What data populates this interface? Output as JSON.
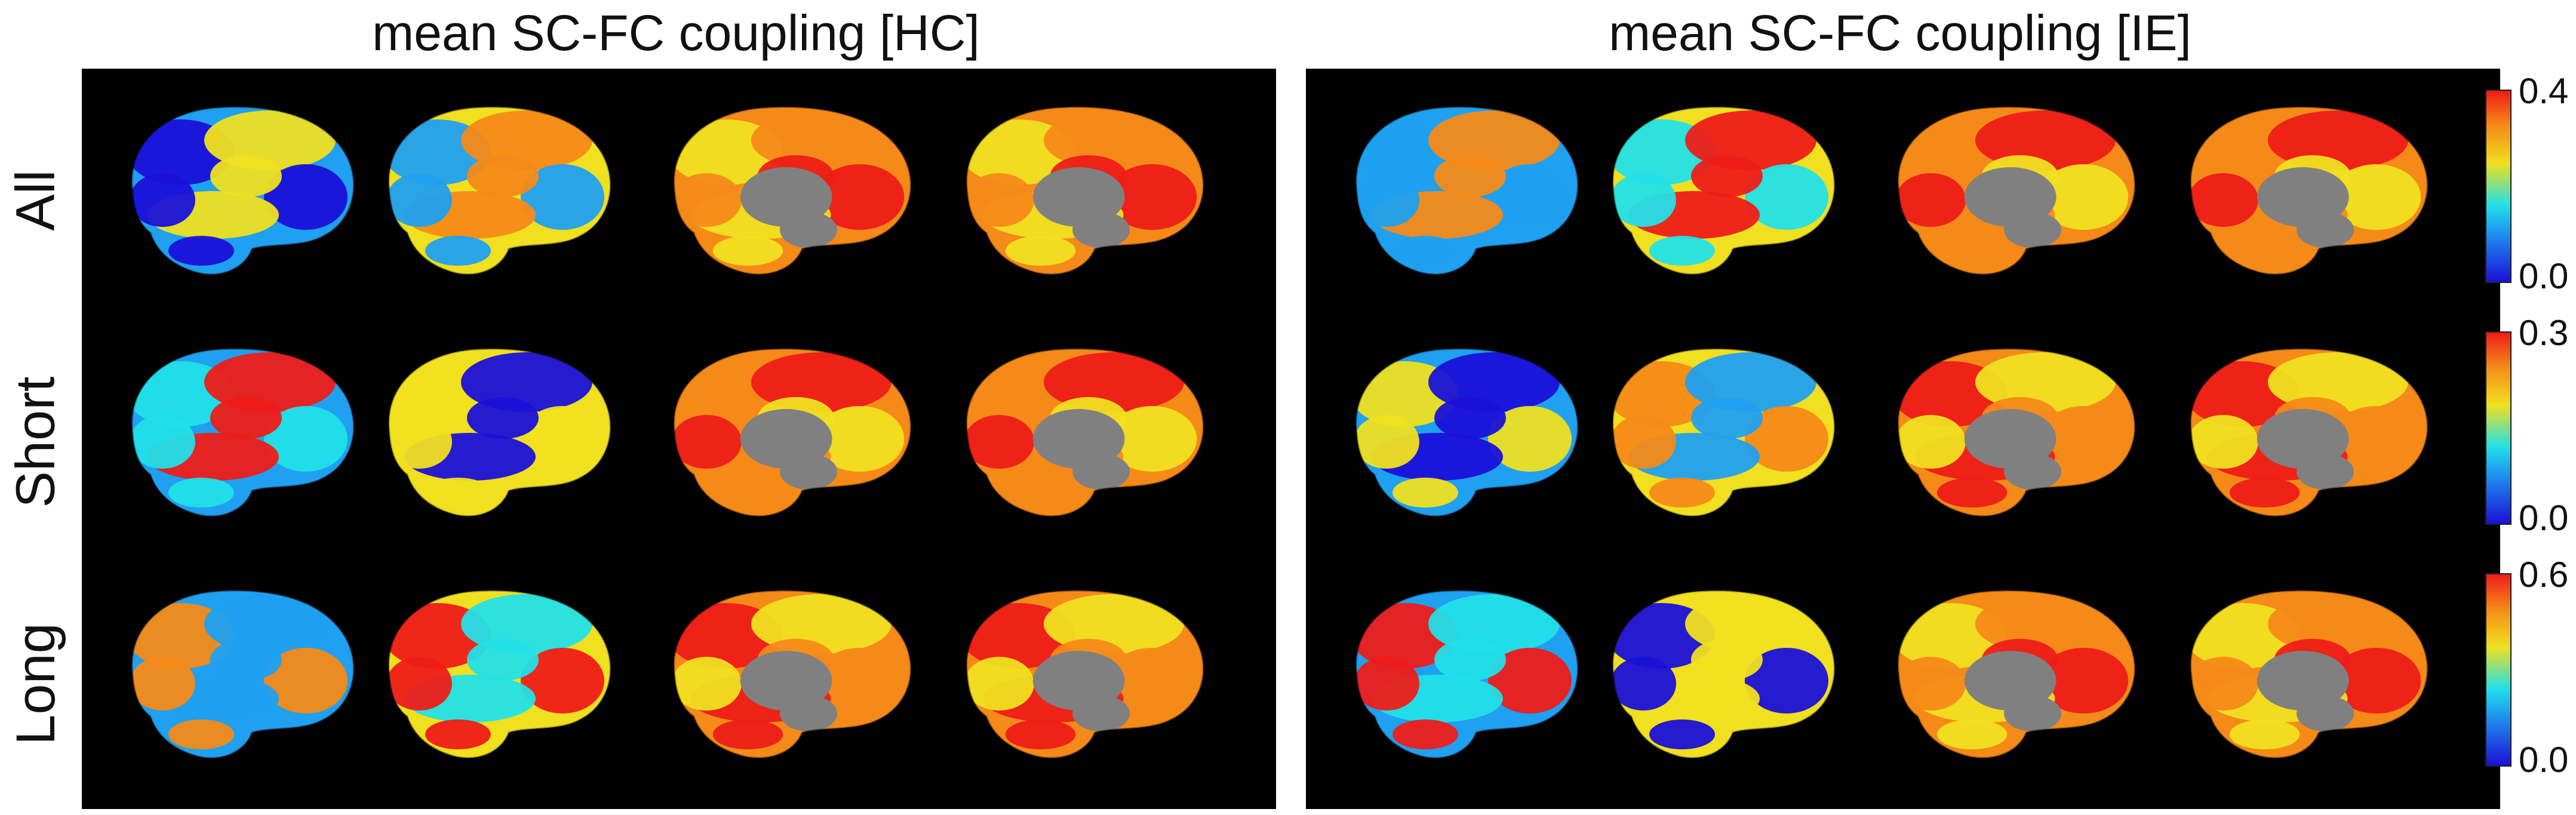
{
  "titles": {
    "left": "mean SC-FC coupling [HC]",
    "right": "mean SC-FC coupling [IE]"
  },
  "rows": [
    {
      "label": "All",
      "cbar_max": "0.4",
      "cbar_min": "0.0"
    },
    {
      "label": "Short",
      "cbar_max": "0.3",
      "cbar_min": "0.0"
    },
    {
      "label": "Long",
      "cbar_max": "0.6",
      "cbar_min": "0.0"
    }
  ],
  "colormap": [
    "#1a10d8",
    "#1fa0f0",
    "#22e0e8",
    "#f0e020",
    "#f58a18",
    "#ee1c18"
  ],
  "medial_wall_color": "#808080",
  "background_color": "#000000"
}
